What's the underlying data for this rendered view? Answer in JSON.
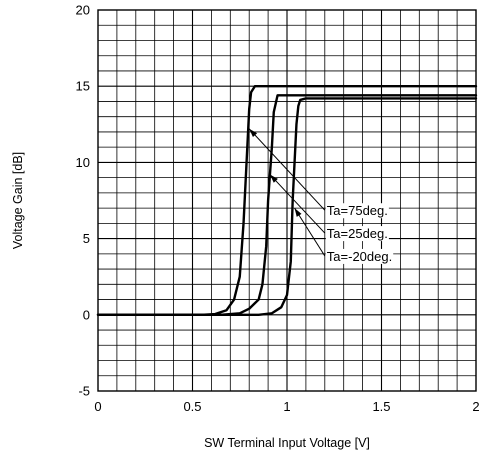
{
  "chart_data": {
    "type": "line",
    "title": "",
    "xlabel": "SW Terminal Input Voltage [V]",
    "ylabel": "Voltage Gain [dB]",
    "xlim": [
      0,
      2
    ],
    "ylim": [
      -5,
      20
    ],
    "xticks": [
      0,
      0.5,
      1,
      1.5,
      2
    ],
    "xtick_labels": [
      "0",
      "0.5",
      "1",
      "1.5",
      "2"
    ],
    "yticks": [
      -5,
      0,
      5,
      10,
      15,
      20
    ],
    "ytick_labels": [
      "-5",
      "0",
      "5",
      "10",
      "15",
      "20"
    ],
    "grid": true,
    "legend": "none",
    "series": [
      {
        "name": "Ta=75deg.",
        "x": [
          0,
          0.55,
          0.62,
          0.68,
          0.72,
          0.75,
          0.77,
          0.79,
          0.8,
          0.81,
          0.83,
          2
        ],
        "y": [
          0,
          0,
          0.05,
          0.3,
          1,
          2.5,
          6,
          11,
          13.5,
          14.6,
          15,
          15
        ]
      },
      {
        "name": "Ta=25deg.",
        "x": [
          0,
          0.65,
          0.75,
          0.8,
          0.85,
          0.87,
          0.89,
          0.9,
          0.92,
          0.93,
          0.95,
          2
        ],
        "y": [
          0,
          0,
          0.1,
          0.4,
          1,
          2,
          4.5,
          7.5,
          11,
          13.3,
          14.4,
          14.4
        ]
      },
      {
        "name": "Ta=-20deg.",
        "x": [
          0,
          0.85,
          0.92,
          0.97,
          1.0,
          1.02,
          1.03,
          1.05,
          1.06,
          1.07,
          1.1,
          2
        ],
        "y": [
          0,
          0,
          0.1,
          0.5,
          1.3,
          3.5,
          7.5,
          12.5,
          13.7,
          14.1,
          14.2,
          14.2
        ]
      }
    ],
    "annotations": [
      {
        "text": "Ta=75deg.",
        "series": 0,
        "x": 0.8,
        "y": 12.2,
        "label_x": 1.2,
        "label_y": 6.6
      },
      {
        "text": "Ta=25deg.",
        "series": 1,
        "x": 0.91,
        "y": 9.2,
        "label_x": 1.2,
        "label_y": 5.1
      },
      {
        "text": "Ta=-20deg.",
        "series": 2,
        "x": 1.04,
        "y": 7.0,
        "label_x": 1.2,
        "label_y": 3.6
      }
    ]
  }
}
